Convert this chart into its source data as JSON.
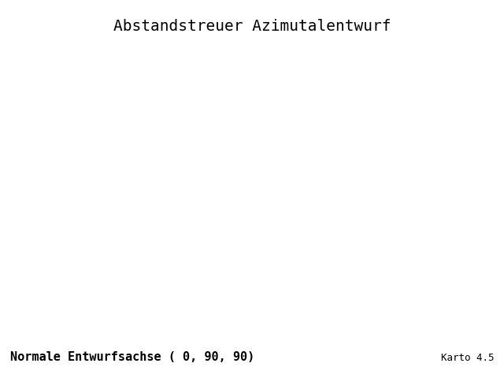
{
  "title": "Abstandstreuer Azimutalentwurf",
  "subtitle": "Normale Entwurfsachse ( 0, 90, 90)",
  "credit": "Karto 4.5",
  "projection": "AzimuthalEquidistant",
  "central_longitude": 0,
  "central_latitude": 90,
  "title_fontsize": 14,
  "label_fontsize": 11,
  "credit_fontsize": 9,
  "coastline_color": "blue",
  "coastline_linewidth": 0.8,
  "gridline_color": "black",
  "gridline_linewidth": 0.7,
  "background_color": "white",
  "title_font": "monospace",
  "label_font": "monospace",
  "globe_edge_color": "black",
  "globe_edge_linewidth": 1.0,
  "fig_width": 6.4,
  "fig_height": 4.8,
  "dpi": 100,
  "lat_step": 15,
  "lon_step": 30
}
